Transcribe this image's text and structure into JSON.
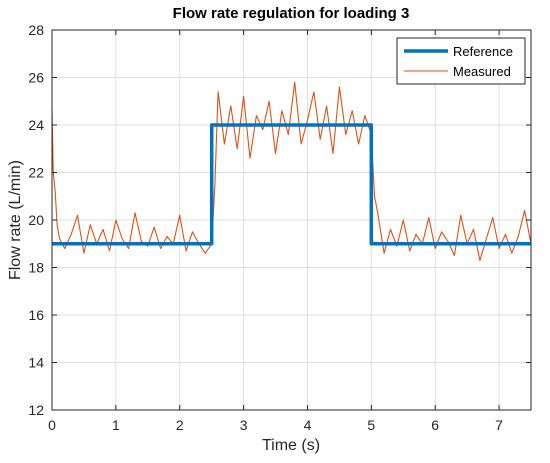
{
  "chart_data": {
    "type": "line",
    "title": "Flow rate regulation for loading 3",
    "xlabel": "Time (s)",
    "ylabel": "Flow rate (L/min)",
    "xlim": [
      0,
      7.5
    ],
    "ylim": [
      12,
      28
    ],
    "xticks": [
      0,
      1,
      2,
      3,
      4,
      5,
      6,
      7
    ],
    "yticks": [
      12,
      14,
      16,
      18,
      20,
      22,
      24,
      26,
      28
    ],
    "xtick_labels": [
      "0",
      "1",
      "2",
      "3",
      "4",
      "5",
      "6",
      "7"
    ],
    "ytick_labels": [
      "12",
      "14",
      "16",
      "18",
      "20",
      "22",
      "24",
      "26",
      "28"
    ],
    "grid": true,
    "legend_position": "top-right",
    "series": [
      {
        "name": "Reference",
        "color": "#0072BD",
        "x": [
          0,
          2.5,
          2.5,
          5.0,
          5.0,
          7.5
        ],
        "y": [
          19,
          19,
          24,
          24,
          19,
          19
        ]
      },
      {
        "name": "Measured",
        "color": "#D95319",
        "x": [
          0,
          0.02,
          0.05,
          0.08,
          0.12,
          0.2,
          0.3,
          0.4,
          0.5,
          0.6,
          0.7,
          0.8,
          0.9,
          1.0,
          1.1,
          1.2,
          1.3,
          1.4,
          1.5,
          1.6,
          1.7,
          1.8,
          1.9,
          2.0,
          2.1,
          2.2,
          2.3,
          2.4,
          2.5,
          2.55,
          2.6,
          2.7,
          2.8,
          2.9,
          3.0,
          3.1,
          3.2,
          3.3,
          3.4,
          3.5,
          3.6,
          3.7,
          3.8,
          3.9,
          4.0,
          4.1,
          4.2,
          4.3,
          4.4,
          4.5,
          4.6,
          4.7,
          4.8,
          4.9,
          5.0,
          5.05,
          5.1,
          5.2,
          5.3,
          5.4,
          5.5,
          5.6,
          5.7,
          5.8,
          5.9,
          6.0,
          6.1,
          6.2,
          6.3,
          6.4,
          6.5,
          6.6,
          6.7,
          6.8,
          6.9,
          7.0,
          7.1,
          7.2,
          7.3,
          7.4,
          7.5
        ],
        "y": [
          24.6,
          22.0,
          21.2,
          19.8,
          19.2,
          18.8,
          19.4,
          20.2,
          18.6,
          19.8,
          19.0,
          19.6,
          18.7,
          20.0,
          19.2,
          18.8,
          20.3,
          19.1,
          18.9,
          19.7,
          18.8,
          19.3,
          19.0,
          20.2,
          18.7,
          19.5,
          19.0,
          18.6,
          19.0,
          21.5,
          25.4,
          23.2,
          24.8,
          23.0,
          25.2,
          22.6,
          24.4,
          23.8,
          25.0,
          22.8,
          24.6,
          23.6,
          25.8,
          23.2,
          24.2,
          25.4,
          23.4,
          24.8,
          22.8,
          25.6,
          23.6,
          24.6,
          23.2,
          24.4,
          23.6,
          21.0,
          20.3,
          18.6,
          19.6,
          18.9,
          20.0,
          18.7,
          19.4,
          19.0,
          20.1,
          18.8,
          19.5,
          19.1,
          18.5,
          20.2,
          19.0,
          19.6,
          18.3,
          19.2,
          20.1,
          18.8,
          19.4,
          18.6,
          19.3,
          20.4,
          19.0
        ]
      }
    ]
  }
}
